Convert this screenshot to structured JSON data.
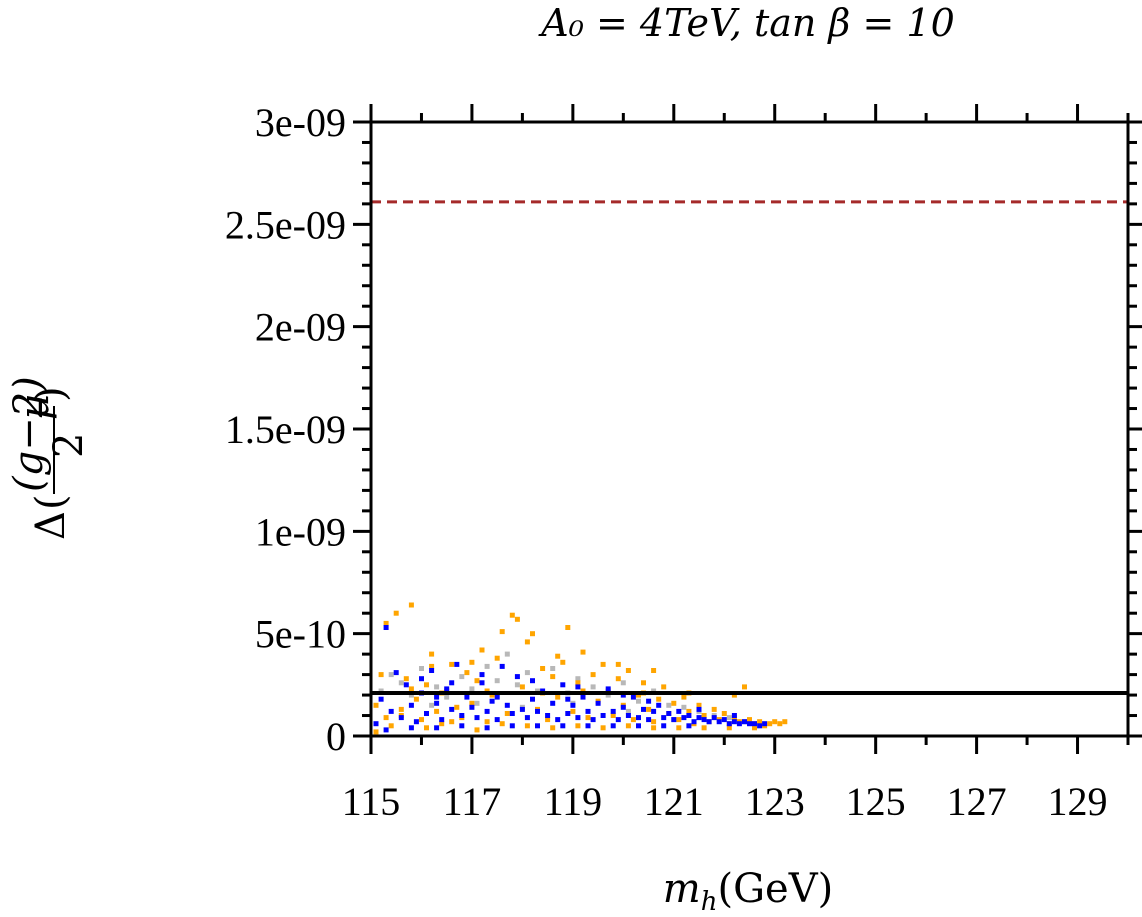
{
  "chart_data": {
    "type": "scatter",
    "title": "A₀ = 4TeV, tan β = 10",
    "xlabel": "m_h(GeV)",
    "xlabel_symbol": "m",
    "xlabel_subscript": "h",
    "xlabel_unit": "(GeV)",
    "ylabel": "Δ((g−2)_μ / 2)",
    "ylabel_delta": "Δ",
    "ylabel_numerator": "(g−2)",
    "ylabel_subscript": "μ",
    "ylabel_denominator": "2",
    "xlim": [
      115,
      130
    ],
    "ylim": [
      0,
      3e-09
    ],
    "x_ticks": [
      115,
      117,
      119,
      121,
      123,
      125,
      127,
      129
    ],
    "x_tick_labels": [
      "115",
      "117",
      "119",
      "121",
      "123",
      "125",
      "127",
      "129"
    ],
    "y_ticks": [
      0,
      5e-10,
      1e-09,
      1.5e-09,
      2e-09,
      2.5e-09,
      3e-09
    ],
    "y_tick_labels": [
      "0",
      "5e-10",
      "1e-09",
      "1.5e-09",
      "2e-09",
      "2.5e-09",
      "3e-09"
    ],
    "reference_lines": [
      {
        "name": "upper-bound-line",
        "y": 2.61e-09,
        "color": "#a52a2a",
        "style": "dashed"
      },
      {
        "name": "lower-bound-line",
        "y": 2.1e-10,
        "color": "#000000",
        "style": "solid"
      }
    ],
    "series": [
      {
        "name": "grey points",
        "color": "#b8b8b8",
        "points": [
          [
            115.2,
            2.2e-10
          ],
          [
            115.4,
            3e-10
          ],
          [
            115.6,
            2.6e-10
          ],
          [
            115.8,
            2e-10
          ],
          [
            116.0,
            3.3e-10
          ],
          [
            116.3,
            2.4e-10
          ],
          [
            116.5,
            1.9e-10
          ],
          [
            116.8,
            2.9e-10
          ],
          [
            117.0,
            2.3e-10
          ],
          [
            117.3,
            3.4e-10
          ],
          [
            117.5,
            2.7e-10
          ],
          [
            117.7,
            4e-10
          ],
          [
            117.9,
            2.5e-10
          ],
          [
            118.1,
            3.1e-10
          ],
          [
            118.3,
            2.2e-10
          ],
          [
            118.6,
            3.3e-10
          ],
          [
            118.9,
            2.1e-10
          ],
          [
            119.1,
            2.8e-10
          ],
          [
            119.4,
            2.4e-10
          ],
          [
            119.7,
            2e-10
          ],
          [
            120.0,
            2.6e-10
          ],
          [
            120.3,
            1.7e-10
          ],
          [
            120.6,
            2.2e-10
          ],
          [
            120.9,
            1.5e-10
          ],
          [
            121.2,
            1.4e-10
          ],
          [
            121.5,
            1.2e-10
          ],
          [
            121.8,
            1e-10
          ],
          [
            122.1,
            9e-11
          ],
          [
            116.2,
            1.5e-10
          ],
          [
            117.1,
            1.6e-10
          ],
          [
            118.0,
            1.4e-10
          ],
          [
            119.0,
            1.6e-10
          ],
          [
            120.1,
            1.2e-10
          ],
          [
            121.0,
            8e-11
          ],
          [
            122.4,
            7e-11
          ]
        ]
      },
      {
        "name": "orange points",
        "color": "#ffa500",
        "points": [
          [
            115.1,
            2e-11
          ],
          [
            115.1,
            1.5e-10
          ],
          [
            115.2,
            3e-10
          ],
          [
            115.3,
            5.5e-10
          ],
          [
            115.4,
            5e-11
          ],
          [
            115.5,
            6e-10
          ],
          [
            115.6,
            1e-10
          ],
          [
            115.7,
            2.8e-10
          ],
          [
            115.8,
            6.4e-10
          ],
          [
            115.9,
            1.8e-10
          ],
          [
            116.0,
            8e-11
          ],
          [
            116.1,
            2.5e-10
          ],
          [
            116.2,
            4e-10
          ],
          [
            116.3,
            1.2e-10
          ],
          [
            116.4,
            6e-11
          ],
          [
            116.5,
            2.2e-10
          ],
          [
            116.6,
            3.5e-10
          ],
          [
            116.7,
            1.4e-10
          ],
          [
            116.8,
            9e-11
          ],
          [
            116.9,
            3.1e-10
          ],
          [
            117.0,
            1.6e-10
          ],
          [
            117.1,
            2.7e-10
          ],
          [
            117.2,
            4.2e-10
          ],
          [
            117.3,
            7e-11
          ],
          [
            117.4,
            2e-10
          ],
          [
            117.5,
            3.8e-10
          ],
          [
            117.6,
            5.1e-10
          ],
          [
            117.7,
            1.1e-10
          ],
          [
            117.8,
            5.9e-10
          ],
          [
            117.9,
            5.7e-10
          ],
          [
            118.0,
            2.4e-10
          ],
          [
            118.1,
            4.6e-10
          ],
          [
            118.2,
            5e-10
          ],
          [
            118.3,
            1.3e-10
          ],
          [
            118.4,
            3.3e-10
          ],
          [
            118.5,
            8e-11
          ],
          [
            118.6,
            2.9e-10
          ],
          [
            118.7,
            1.9e-10
          ],
          [
            118.8,
            3.6e-10
          ],
          [
            118.9,
            5.3e-10
          ],
          [
            119.0,
            1.2e-10
          ],
          [
            119.1,
            2.6e-10
          ],
          [
            119.2,
            4.1e-10
          ],
          [
            119.3,
            9e-11
          ],
          [
            119.4,
            3e-10
          ],
          [
            119.5,
            1.7e-10
          ],
          [
            119.6,
            3.5e-10
          ],
          [
            119.7,
            2.2e-10
          ],
          [
            119.8,
            1e-10
          ],
          [
            119.9,
            2.8e-10
          ],
          [
            120.0,
            1.5e-10
          ],
          [
            120.1,
            3.2e-10
          ],
          [
            120.2,
            8e-11
          ],
          [
            120.3,
            2e-10
          ],
          [
            120.4,
            2.6e-10
          ],
          [
            120.5,
            1.3e-10
          ],
          [
            120.6,
            7e-11
          ],
          [
            120.7,
            1.8e-10
          ],
          [
            120.8,
            2.4e-10
          ],
          [
            120.9,
            1.1e-10
          ],
          [
            121.0,
            1.6e-10
          ],
          [
            121.1,
            8e-11
          ],
          [
            121.2,
            1.9e-10
          ],
          [
            121.3,
            1.2e-10
          ],
          [
            121.4,
            6e-11
          ],
          [
            121.5,
            1.5e-10
          ],
          [
            121.6,
            1e-10
          ],
          [
            121.7,
            7e-11
          ],
          [
            121.8,
            1.3e-10
          ],
          [
            121.9,
            8e-11
          ],
          [
            122.0,
            1.1e-10
          ],
          [
            122.1,
            6e-11
          ],
          [
            122.2,
            9e-11
          ],
          [
            122.3,
            7e-11
          ],
          [
            122.4,
            2.4e-10
          ],
          [
            122.5,
            8e-11
          ],
          [
            122.6,
            6e-11
          ],
          [
            122.7,
            7e-11
          ],
          [
            122.8,
            5e-11
          ],
          [
            122.9,
            6e-11
          ],
          [
            123.0,
            7e-11
          ],
          [
            123.1,
            6e-11
          ],
          [
            123.2,
            7e-11
          ],
          [
            115.3,
            9e-11
          ],
          [
            115.6,
            1.3e-10
          ],
          [
            116.1,
            4e-11
          ],
          [
            116.6,
            7e-11
          ],
          [
            117.1,
            3e-11
          ],
          [
            117.6,
            6e-11
          ],
          [
            118.1,
            5e-11
          ],
          [
            118.6,
            4e-11
          ],
          [
            119.1,
            5e-11
          ],
          [
            119.6,
            4e-11
          ],
          [
            120.1,
            5e-11
          ],
          [
            120.6,
            4e-11
          ],
          [
            121.1,
            4e-11
          ],
          [
            121.6,
            4e-11
          ],
          [
            122.1,
            4e-11
          ],
          [
            122.6,
            4e-11
          ],
          [
            115.8,
            2.3e-10
          ],
          [
            116.4,
            2.1e-10
          ],
          [
            117.3,
            2.2e-10
          ],
          [
            118.4,
            2.1e-10
          ],
          [
            119.2,
            2.2e-10
          ],
          [
            120.4,
            2.1e-10
          ],
          [
            121.3,
            2.1e-10
          ],
          [
            122.2,
            2e-10
          ],
          [
            116.2,
            3.4e-10
          ],
          [
            117.0,
            3.6e-10
          ],
          [
            118.7,
            3.9e-10
          ],
          [
            119.9,
            3.5e-10
          ],
          [
            120.6,
            3.2e-10
          ]
        ]
      },
      {
        "name": "blue points",
        "color": "#0000ff",
        "points": [
          [
            115.1,
            6e-11
          ],
          [
            115.2,
            1.8e-10
          ],
          [
            115.3,
            5.3e-10
          ],
          [
            115.4,
            1.2e-10
          ],
          [
            115.5,
            3.1e-10
          ],
          [
            115.6,
            9e-11
          ],
          [
            115.7,
            2.5e-10
          ],
          [
            115.8,
            1.5e-10
          ],
          [
            115.9,
            7e-11
          ],
          [
            116.0,
            2.1e-10
          ],
          [
            116.1,
            1.1e-10
          ],
          [
            116.2,
            3.2e-10
          ],
          [
            116.3,
            1.6e-10
          ],
          [
            116.4,
            8e-11
          ],
          [
            116.5,
            2.3e-10
          ],
          [
            116.6,
            1.3e-10
          ],
          [
            116.7,
            3.5e-10
          ],
          [
            116.8,
            1e-10
          ],
          [
            116.9,
            1.9e-10
          ],
          [
            117.0,
            1.4e-10
          ],
          [
            117.1,
            9e-11
          ],
          [
            117.2,
            2.6e-10
          ],
          [
            117.3,
            1.2e-10
          ],
          [
            117.4,
            1.7e-10
          ],
          [
            117.5,
            8e-11
          ],
          [
            117.6,
            3.4e-10
          ],
          [
            117.7,
            1.5e-10
          ],
          [
            117.8,
            1.1e-10
          ],
          [
            117.9,
            2.9e-10
          ],
          [
            118.0,
            1.3e-10
          ],
          [
            118.1,
            9e-11
          ],
          [
            118.2,
            1.8e-10
          ],
          [
            118.3,
            1.2e-10
          ],
          [
            118.4,
            2.2e-10
          ],
          [
            118.5,
            1e-10
          ],
          [
            118.6,
            1.6e-10
          ],
          [
            118.7,
            8e-11
          ],
          [
            118.8,
            2.5e-10
          ],
          [
            118.9,
            1.1e-10
          ],
          [
            119.0,
            1.5e-10
          ],
          [
            119.1,
            9e-11
          ],
          [
            119.2,
            1.9e-10
          ],
          [
            119.3,
            1.2e-10
          ],
          [
            119.4,
            8e-11
          ],
          [
            119.5,
            1.6e-10
          ],
          [
            119.6,
            1e-10
          ],
          [
            119.7,
            2.3e-10
          ],
          [
            119.8,
            1.2e-10
          ],
          [
            119.9,
            8e-11
          ],
          [
            120.0,
            1.4e-10
          ],
          [
            120.1,
            1e-10
          ],
          [
            120.2,
            1.9e-10
          ],
          [
            120.3,
            9e-11
          ],
          [
            120.4,
            1.3e-10
          ],
          [
            120.5,
            8e-11
          ],
          [
            120.6,
            1.2e-10
          ],
          [
            120.7,
            1.5e-10
          ],
          [
            120.8,
            9e-11
          ],
          [
            120.9,
            1.1e-10
          ],
          [
            121.0,
            8e-11
          ],
          [
            121.1,
            1.2e-10
          ],
          [
            121.2,
            9e-11
          ],
          [
            121.3,
            1e-10
          ],
          [
            121.4,
            7e-11
          ],
          [
            121.5,
            9e-11
          ],
          [
            121.6,
            8e-11
          ],
          [
            121.7,
            7e-11
          ],
          [
            121.8,
            9e-11
          ],
          [
            121.9,
            7e-11
          ],
          [
            122.0,
            8e-11
          ],
          [
            122.1,
            6e-11
          ],
          [
            122.2,
            7e-11
          ],
          [
            122.3,
            6e-11
          ],
          [
            122.4,
            7e-11
          ],
          [
            122.5,
            6e-11
          ],
          [
            122.6,
            6e-11
          ],
          [
            122.7,
            5e-11
          ],
          [
            122.8,
            6e-11
          ],
          [
            115.3,
            3e-11
          ],
          [
            115.8,
            4e-11
          ],
          [
            116.3,
            4e-11
          ],
          [
            116.8,
            5e-11
          ],
          [
            117.3,
            4e-11
          ],
          [
            117.8,
            5e-11
          ],
          [
            118.3,
            5e-11
          ],
          [
            118.8,
            5e-11
          ],
          [
            119.3,
            5e-11
          ],
          [
            119.8,
            5e-11
          ],
          [
            120.3,
            5e-11
          ],
          [
            120.8,
            5e-11
          ],
          [
            121.3,
            5e-11
          ],
          [
            116.0,
            2.8e-10
          ],
          [
            116.6,
            2.6e-10
          ],
          [
            117.2,
            3e-10
          ],
          [
            118.2,
            2.7e-10
          ],
          [
            119.1,
            2.4e-10
          ],
          [
            120.0,
            2e-10
          ],
          [
            117.5,
            1.9e-10
          ],
          [
            116.3,
            1.9e-10
          ],
          [
            118.9,
            1.8e-10
          ],
          [
            120.5,
            1.7e-10
          ],
          [
            121.5,
            1.3e-10
          ],
          [
            122.2,
            1e-10
          ]
        ]
      }
    ]
  }
}
